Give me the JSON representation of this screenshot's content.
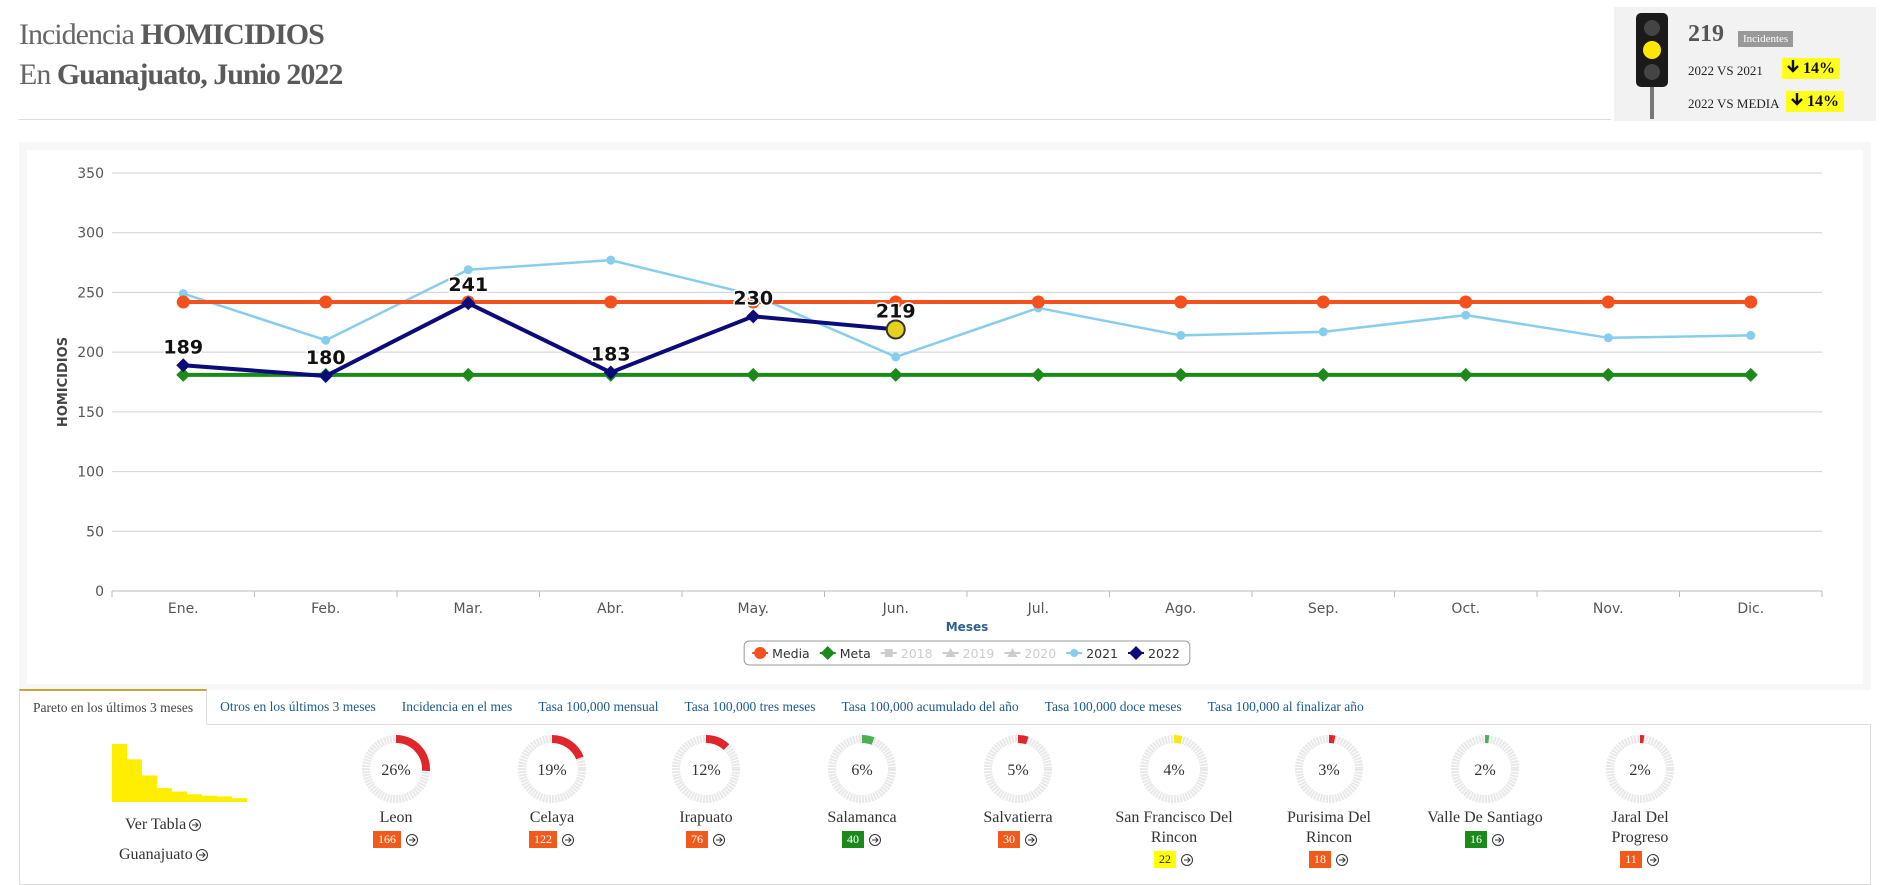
{
  "header": {
    "line1": [
      "Incidencia",
      "HOMICIDIOS"
    ],
    "line2": [
      "En",
      "Guanajuato",
      ", Junio 2022"
    ]
  },
  "indicator": {
    "total": "219",
    "unit": "Incidentes",
    "comparisons": [
      {
        "label": "2022 VS 2021",
        "change": "14%"
      },
      {
        "label": "2022 VS MEDIA",
        "change": "14%"
      }
    ]
  },
  "chart_data": {
    "type": "line",
    "x_label": "Meses",
    "y_label": "HOMICIDIOS",
    "categories": [
      "Ene.",
      "Feb.",
      "Mar.",
      "Abr.",
      "May.",
      "Jun.",
      "Jul.",
      "Ago.",
      "Sep.",
      "Oct.",
      "Nov.",
      "Dic."
    ],
    "ylim": [
      0,
      350
    ],
    "yticks": [
      0,
      50,
      100,
      150,
      200,
      250,
      300,
      350
    ],
    "grid": true,
    "series": [
      {
        "name": "Media",
        "color": "#f4511e",
        "marker": "circle",
        "width": 4,
        "visible": true,
        "values": [
          242,
          242,
          242,
          242,
          242,
          242,
          242,
          242,
          242,
          242,
          242,
          242
        ]
      },
      {
        "name": "Meta",
        "color": "#1b8a1b",
        "marker": "diamond",
        "width": 4,
        "visible": true,
        "values": [
          181,
          181,
          181,
          181,
          181,
          181,
          181,
          181,
          181,
          181,
          181,
          181
        ]
      },
      {
        "name": "2018",
        "color": "#cccccc",
        "marker": "square",
        "visible": false,
        "values": [
          null,
          null,
          null,
          null,
          null,
          null,
          null,
          null,
          null,
          null,
          null,
          null
        ]
      },
      {
        "name": "2019",
        "color": "#cccccc",
        "marker": "triangle",
        "visible": false,
        "values": [
          null,
          null,
          null,
          null,
          null,
          null,
          null,
          null,
          null,
          null,
          null,
          null
        ]
      },
      {
        "name": "2020",
        "color": "#cccccc",
        "marker": "triangle",
        "visible": false,
        "values": [
          null,
          null,
          null,
          null,
          null,
          null,
          null,
          null,
          null,
          null,
          null,
          null
        ]
      },
      {
        "name": "2021",
        "color": "#87cdee",
        "marker": "circle",
        "width": 2.5,
        "visible": true,
        "values": [
          249,
          210,
          269,
          277,
          248,
          196,
          237,
          214,
          217,
          231,
          212,
          214
        ]
      },
      {
        "name": "2022",
        "color": "#0b0b7a",
        "marker": "diamond",
        "width": 4,
        "visible": true,
        "data_labels": true,
        "values": [
          189,
          180,
          241,
          183,
          230,
          219,
          null,
          null,
          null,
          null,
          null,
          null
        ]
      }
    ]
  },
  "tabs": [
    "Pareto en los últimos 3 meses",
    "Otros en los últimos 3 meses",
    "Incidencia en el mes",
    "Tasa 100,000 mensual",
    "Tasa 100,000 tres meses",
    "Tasa 100,000 acumulado del año",
    "Tasa 100,000 doce meses",
    "Tasa 100,000 al finalizar año"
  ],
  "pareto": {
    "links": [
      "Ver Tabla",
      "Guanajuato"
    ],
    "items": [
      {
        "name": "Leon",
        "pct": 26,
        "pct_label": "26%",
        "count": 166,
        "count_label": "166",
        "gauge_color": "#e0262b",
        "badge_color": "#f05a1a"
      },
      {
        "name": "Celaya",
        "pct": 19,
        "pct_label": "19%",
        "count": 122,
        "count_label": "122",
        "gauge_color": "#e0262b",
        "badge_color": "#f05a1a"
      },
      {
        "name": "Irapuato",
        "pct": 12,
        "pct_label": "12%",
        "count": 76,
        "count_label": "76",
        "gauge_color": "#e0262b",
        "badge_color": "#f05a1a"
      },
      {
        "name": "Salamanca",
        "pct": 6,
        "pct_label": "6%",
        "count": 40,
        "count_label": "40",
        "gauge_color": "#4caf50",
        "badge_color": "#1b8a1b"
      },
      {
        "name": "Salvatierra",
        "pct": 5,
        "pct_label": "5%",
        "count": 30,
        "count_label": "30",
        "gauge_color": "#e0262b",
        "badge_color": "#f05a1a"
      },
      {
        "name": "San Francisco Del Rincon",
        "pct": 4,
        "pct_label": "4%",
        "count": 22,
        "count_label": "22",
        "gauge_color": "#f5ea14",
        "badge_color": "#ffff00"
      },
      {
        "name": "Purisima Del Rincon",
        "pct": 3,
        "pct_label": "3%",
        "count": 18,
        "count_label": "18",
        "gauge_color": "#e0262b",
        "badge_color": "#f05a1a"
      },
      {
        "name": "Valle De Santiago",
        "pct": 2,
        "pct_label": "2%",
        "count": 16,
        "count_label": "16",
        "gauge_color": "#4caf50",
        "badge_color": "#1b8a1b"
      },
      {
        "name": "Jaral Del Progreso",
        "pct": 2,
        "pct_label": "2%",
        "count": 11,
        "count_label": "11",
        "gauge_color": "#e0262b",
        "badge_color": "#f05a1a"
      }
    ]
  }
}
